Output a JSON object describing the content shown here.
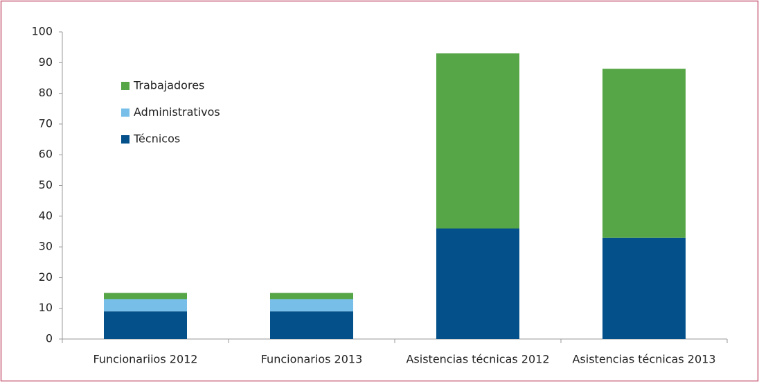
{
  "chart_data": {
    "type": "stacked_bar",
    "categories": [
      "Funcionariios 2012",
      "Funcionarios 2013",
      "Asistencias técnicas 2012",
      "Asistencias técnicas 2013"
    ],
    "series": [
      {
        "name": "Técnicos",
        "color": "#03508a",
        "values": [
          9,
          9,
          36,
          33
        ]
      },
      {
        "name": "Administrativos",
        "color": "#77bfe9",
        "values": [
          4,
          4,
          0,
          0
        ]
      },
      {
        "name": "Trabajadores",
        "color": "#56a546",
        "values": [
          2,
          2,
          57,
          55
        ]
      }
    ],
    "ylim": [
      0,
      100
    ],
    "yticks": [
      0,
      10,
      20,
      30,
      40,
      50,
      60,
      70,
      80,
      90,
      100
    ],
    "grid": false,
    "legend": "upper left"
  }
}
